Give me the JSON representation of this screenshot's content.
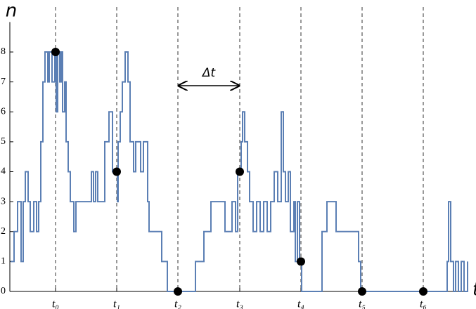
{
  "chart_data": {
    "type": "step",
    "x_label": "t",
    "y_label": "n",
    "annotation": "Δt",
    "xlim": [
      0,
      651
    ],
    "ylim": [
      0,
      9
    ],
    "xticks": [
      {
        "value": 65,
        "label": "t₀"
      },
      {
        "value": 152,
        "label": "t₁"
      },
      {
        "value": 239,
        "label": "t₂"
      },
      {
        "value": 327,
        "label": "t₃"
      },
      {
        "value": 414,
        "label": "t₄"
      },
      {
        "value": 501,
        "label": "t₅"
      },
      {
        "value": 588,
        "label": "t₆"
      }
    ],
    "yticks": [
      0,
      1,
      2,
      3,
      4,
      5,
      6,
      7,
      8
    ],
    "grid": "x-dashed",
    "series": [
      {
        "color": "#5b7fb4",
        "x": [
          1,
          6,
          11,
          16,
          19,
          22,
          26,
          29,
          34,
          38,
          41,
          44,
          47,
          50,
          54,
          56,
          60,
          64,
          66,
          68,
          71,
          73,
          75,
          78,
          80,
          83,
          86,
          91,
          94,
          116,
          119,
          122,
          125,
          135,
          141,
          146,
          153,
          154,
          157,
          160,
          164,
          168,
          171,
          176,
          179,
          186,
          190,
          196,
          198,
          216,
          224,
          264,
          276,
          286,
          306,
          316,
          321,
          324,
          329,
          331,
          334,
          338,
          341,
          346,
          351,
          356,
          361,
          366,
          371,
          376,
          381,
          386,
          389,
          392,
          396,
          399,
          404,
          406,
          409,
          412,
          415,
          441,
          444,
          451,
          464,
          496,
          499,
          619,
          622,
          624,
          627,
          631,
          634,
          638,
          642,
          646,
          651
        ],
        "values": [
          1,
          2,
          3,
          1,
          3,
          4,
          3,
          2,
          3,
          2,
          3,
          5,
          7,
          8,
          7,
          8,
          7,
          8,
          6,
          8,
          7,
          8,
          6,
          7,
          5,
          4,
          3,
          2,
          3,
          4,
          3,
          4,
          3,
          5,
          6,
          4,
          3,
          5,
          6,
          7,
          8,
          7,
          5,
          4,
          5,
          4,
          5,
          3,
          2,
          1,
          0,
          1,
          2,
          3,
          2,
          3,
          2,
          4,
          5,
          6,
          5,
          4,
          3,
          2,
          3,
          2,
          3,
          2,
          3,
          4,
          3,
          6,
          4,
          3,
          4,
          2,
          3,
          1,
          3,
          1,
          0,
          0,
          2,
          3,
          2,
          1,
          0,
          0,
          1,
          3,
          1,
          0,
          1,
          0,
          1,
          0,
          1
        ]
      },
      {
        "color": "#000000",
        "x": [
          65,
          152,
          239,
          327,
          414,
          501,
          588
        ],
        "values": [
          8,
          4,
          0,
          4,
          1,
          0,
          0
        ]
      }
    ]
  }
}
